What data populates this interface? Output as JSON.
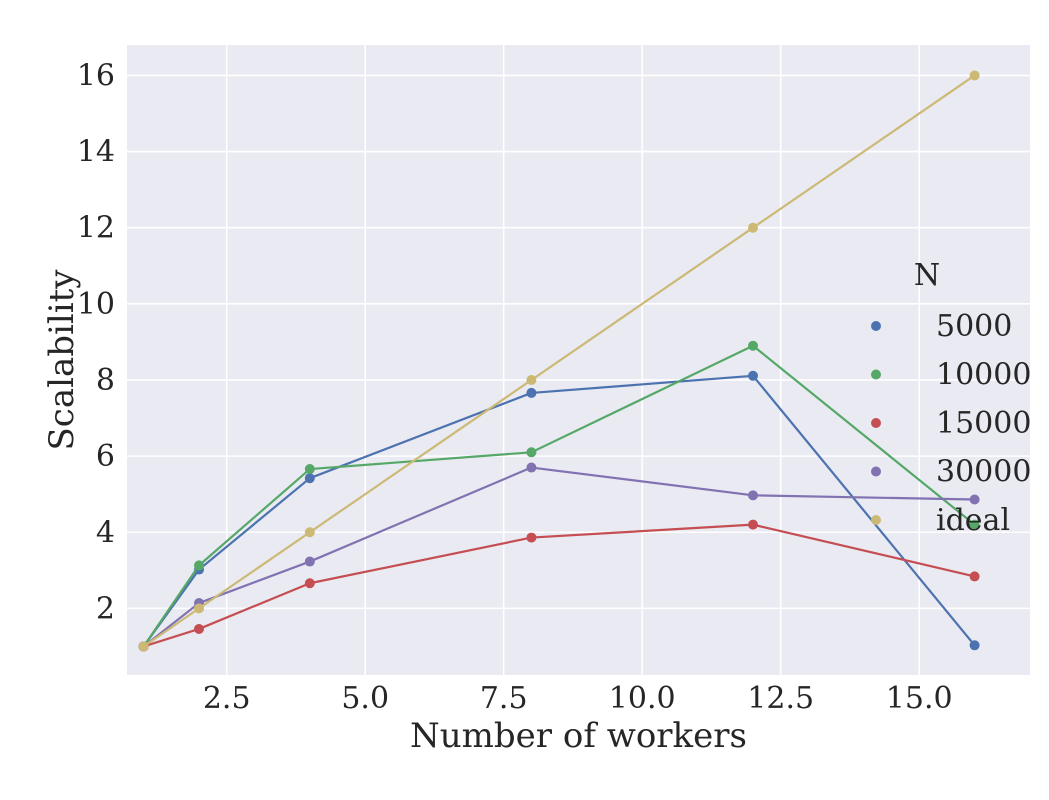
{
  "chart_data": {
    "type": "line",
    "title": "",
    "xlabel": "Number of workers",
    "ylabel": "Scalability",
    "xlim": [
      0.7,
      17.0
    ],
    "ylim": [
      0.25,
      16.8
    ],
    "xticks": [
      2.5,
      5.0,
      7.5,
      10.0,
      12.5,
      15.0
    ],
    "xtick_labels": [
      "2.5",
      "5.0",
      "7.5",
      "10.0",
      "12.5",
      "15.0"
    ],
    "yticks": [
      2,
      4,
      6,
      8,
      10,
      12,
      14,
      16
    ],
    "ytick_labels": [
      "2",
      "4",
      "6",
      "8",
      "10",
      "12",
      "14",
      "16"
    ],
    "grid": true,
    "legend": {
      "title": "N",
      "placement": "center-right"
    },
    "x": [
      1,
      2,
      4,
      8,
      12,
      16
    ],
    "series": [
      {
        "name": "5000",
        "color": "#4c72b0",
        "values": [
          1.0,
          3.02,
          5.42,
          7.66,
          8.11,
          1.03
        ]
      },
      {
        "name": "10000",
        "color": "#55a868",
        "values": [
          1.0,
          3.13,
          5.66,
          6.1,
          8.9,
          4.2
        ]
      },
      {
        "name": "15000",
        "color": "#c44e52",
        "values": [
          1.0,
          1.46,
          2.66,
          3.86,
          4.2,
          2.84
        ]
      },
      {
        "name": "30000",
        "color": "#8172b2",
        "values": [
          1.0,
          2.14,
          3.23,
          5.7,
          4.97,
          4.86
        ]
      },
      {
        "name": "ideal",
        "color": "#ccb974",
        "values": [
          1,
          2,
          4,
          8,
          12,
          16
        ]
      }
    ]
  }
}
